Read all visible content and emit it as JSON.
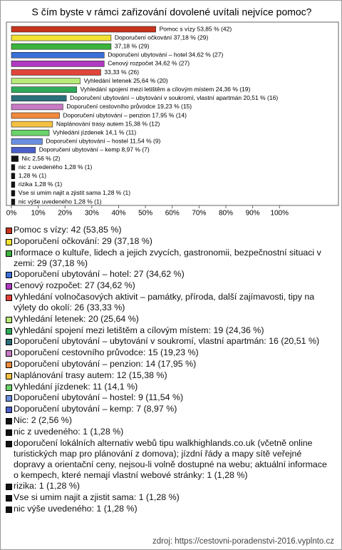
{
  "chart_data": {
    "type": "bar",
    "orientation": "horizontal",
    "title": "S čím byste v rámci zařizování dovolené uvítali nejvíce pomoc?",
    "values": [
      53.85,
      37.18,
      37.18,
      34.62,
      34.62,
      33.33,
      25.64,
      24.36,
      20.51,
      19.23,
      17.95,
      15.38,
      14.1,
      11.54,
      8.97,
      2.56,
      1.28,
      1.28,
      1.28,
      1.28,
      1.28
    ],
    "value_labels": [
      "Pomoc s vízy 53,85 % (42)",
      "Doporučení očkování 37,18 % (29)",
      "37,18 % (29)",
      "Doporučení ubytování – hotel 34,62 % (27)",
      "Cenový rozpočet 34,62 % (27)",
      "33,33 % (26)",
      "Vyhledání letenek 25,64 % (20)",
      "Vyhledání spojení mezi letištěm a cílovým místem 24,36 % (19)",
      "Doporučení ubytování – ubytování v soukromí, vlastní apartmán 20,51 % (16)",
      "Doporučení cestovního průvodce 19,23 % (15)",
      "Doporučení ubytování – penzion 17,95 % (14)",
      "Naplánování trasy autem 15,38 % (12)",
      "Vyhledání jízdenek 14,1 % (11)",
      "Doporučení ubytování – hostel 11,54 % (9)",
      "Doporučení ubytování – kemp 8,97 % (7)",
      "Nic 2,56 % (2)",
      "nic z uvedeného 1,28 % (1)",
      "1,28 % (1)",
      "rizika 1,28 % (1)",
      "Vse si umim najit a zjistit sama 1,28 % (1)",
      "nic výše uvedeného 1,28 % (1)"
    ],
    "legend_labels": [
      "Pomoc s vízy: 42 (53,85 %)",
      "Doporučení očkování: 29 (37,18 %)",
      "Informace o kultuře, lidech a jejich zvycích, gastronomii, bezpečnostní situaci v zemi: 29 (37,18 %)",
      "Doporučení ubytování – hotel: 27 (34,62 %)",
      "Cenový rozpočet: 27 (34,62 %)",
      "Vyhledání volnočasových aktivit – památky, příroda, další zajímavosti, tipy na výlety do okolí: 26 (33,33 %)",
      "Vyhledání letenek: 20 (25,64 %)",
      "Vyhledání spojení mezi letištěm a cílovým místem: 19 (24,36 %)",
      "Doporučení ubytování – ubytování v soukromí, vlastní apartmán: 16 (20,51 %)",
      "Doporučení cestovního průvodce: 15 (19,23 %)",
      "Doporučení ubytování – penzion: 14 (17,95 %)",
      "Naplánování trasy autem: 12 (15,38 %)",
      "Vyhledání jízdenek: 11 (14,1 %)",
      "Doporučení ubytování – hostel: 9 (11,54 %)",
      "Doporučení ubytování – kemp: 7 (8,97 %)",
      "Nic: 2 (2,56 %)",
      "nic z uvedeného: 1 (1,28 %)",
      "doporučení lokálních alternativ webů tipu walkhighlands.co.uk (včetně online turistických map pro plánování z domova); jízdní řády a mapy sítě veřejné dopravy a orientační ceny, nejsou-li volně dostupné na webu; aktuální informace o kempech, které nemají vlastní webové stránky: 1 (1,28 %)",
      "rizika: 1 (1,28 %)",
      "Vse si umim najit a zjistit sama: 1 (1,28 %)",
      "nic výše uvedeného: 1 (1,28 %)"
    ],
    "colors": [
      "#c8341c",
      "#f2e232",
      "#3cb33c",
      "#3b6fd8",
      "#b03ac2",
      "#e0443a",
      "#b7ea7a",
      "#2eaa5a",
      "#2a6f7a",
      "#c97ac4",
      "#f08a3c",
      "#f5c042",
      "#6ad36a",
      "#6a8fe0",
      "#4a5fc9",
      "#111111",
      "#111111",
      "#111111",
      "#111111",
      "#111111",
      "#111111"
    ],
    "xlim": [
      0,
      122
    ],
    "xticks": [
      {
        "value": 0,
        "label": "0%"
      },
      {
        "value": 10,
        "label": "10%"
      },
      {
        "value": 20,
        "label": "20%"
      },
      {
        "value": 30,
        "label": "30%"
      },
      {
        "value": 40,
        "label": "40%"
      },
      {
        "value": 50,
        "label": "50%"
      },
      {
        "value": 60,
        "label": "60%"
      },
      {
        "value": 70,
        "label": "70%"
      },
      {
        "value": 80,
        "label": "80%"
      },
      {
        "value": 90,
        "label": "90%"
      },
      {
        "value": 100,
        "label": "100%"
      }
    ],
    "source": "zdroj: https://cestovni-poradenstvi-2016.vyplnto.cz"
  }
}
